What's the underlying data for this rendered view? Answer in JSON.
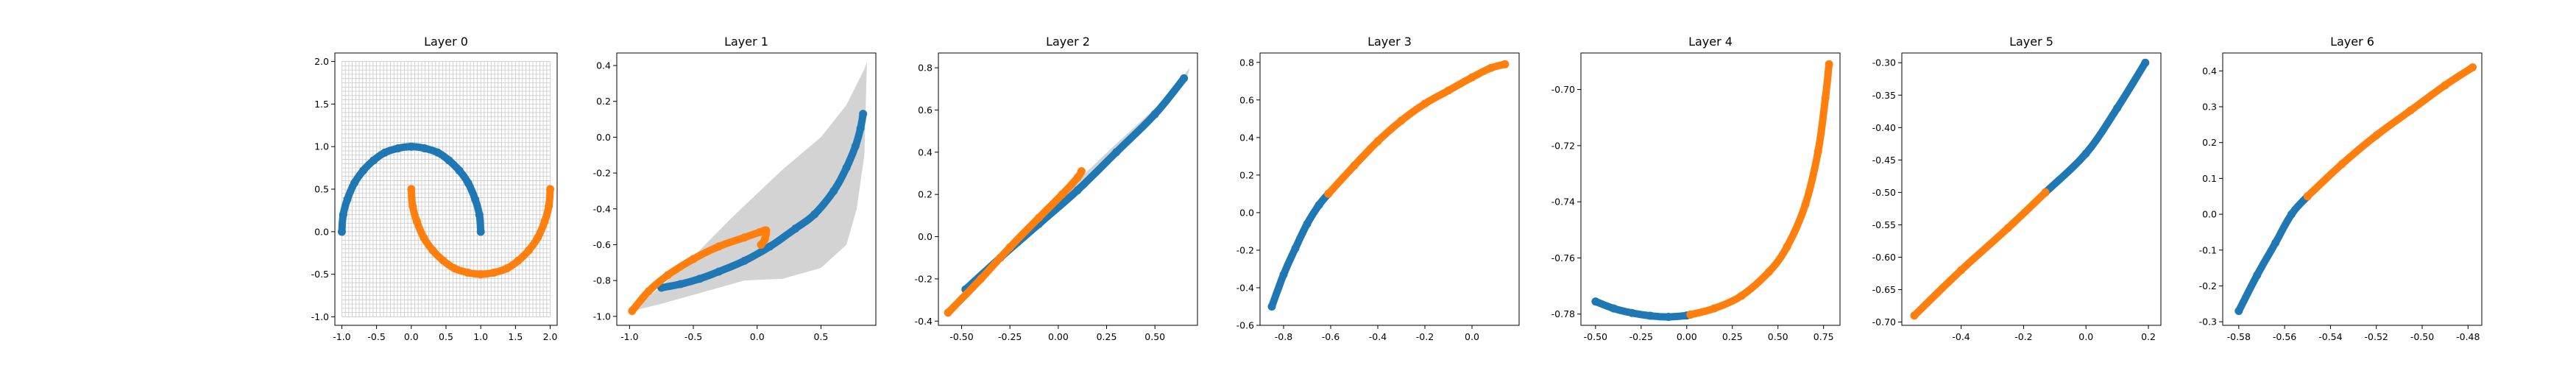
{
  "figure": {
    "colors": {
      "class_a": "#1f77b4",
      "class_b": "#ff7f0e",
      "band": "#d3d3d3",
      "grid": "#c8c8c8"
    }
  },
  "chart_data": [
    {
      "type": "scatter",
      "title": "Layer 0",
      "xlim": [
        -1.1,
        2.1
      ],
      "ylim": [
        -1.1,
        2.1
      ],
      "xticks": [
        "-1.0",
        "-0.5",
        "0.0",
        "0.5",
        "1.0",
        "1.5",
        "2.0"
      ],
      "yticks": [
        "-1.0",
        "-0.5",
        "0.0",
        "0.5",
        "1.0",
        "1.5",
        "2.0"
      ],
      "grid": {
        "x_range": [
          -1.0,
          2.0
        ],
        "y_range": [
          -1.0,
          2.0
        ],
        "lines": 60
      },
      "series": [
        {
          "color": "class_a",
          "points": [
            [
              -1.0,
              0.0
            ],
            [
              -0.98,
              0.2
            ],
            [
              -0.92,
              0.38
            ],
            [
              -0.82,
              0.57
            ],
            [
              -0.69,
              0.72
            ],
            [
              -0.54,
              0.84
            ],
            [
              -0.38,
              0.93
            ],
            [
              -0.19,
              0.98
            ],
            [
              0.0,
              1.0
            ],
            [
              0.19,
              0.98
            ],
            [
              0.38,
              0.93
            ],
            [
              0.54,
              0.84
            ],
            [
              0.69,
              0.72
            ],
            [
              0.82,
              0.57
            ],
            [
              0.92,
              0.38
            ],
            [
              0.98,
              0.2
            ],
            [
              1.0,
              0.0
            ]
          ]
        },
        {
          "color": "class_b",
          "points": [
            [
              0.0,
              0.5
            ],
            [
              0.02,
              0.3
            ],
            [
              0.08,
              0.12
            ],
            [
              0.18,
              -0.07
            ],
            [
              0.31,
              -0.22
            ],
            [
              0.46,
              -0.34
            ],
            [
              0.62,
              -0.43
            ],
            [
              0.81,
              -0.48
            ],
            [
              1.0,
              -0.5
            ],
            [
              1.19,
              -0.48
            ],
            [
              1.38,
              -0.43
            ],
            [
              1.54,
              -0.34
            ],
            [
              1.69,
              -0.22
            ],
            [
              1.82,
              -0.07
            ],
            [
              1.92,
              0.12
            ],
            [
              1.98,
              0.3
            ],
            [
              2.0,
              0.5
            ]
          ]
        }
      ]
    },
    {
      "type": "scatter",
      "title": "Layer 1",
      "xlim": [
        -1.1,
        0.93
      ],
      "ylim": [
        -1.05,
        0.47
      ],
      "xticks": [
        "-1.0",
        "-0.5",
        "0.0",
        "0.5"
      ],
      "yticks": [
        "-1.0",
        "-0.8",
        "-0.6",
        "-0.4",
        "-0.2",
        "0.0",
        "0.2",
        "0.4"
      ],
      "band": [
        [
          -0.98,
          -0.97
        ],
        [
          -0.6,
          -0.74
        ],
        [
          -0.2,
          -0.45
        ],
        [
          0.2,
          -0.18
        ],
        [
          0.5,
          0.0
        ],
        [
          0.7,
          0.18
        ],
        [
          0.84,
          0.38
        ],
        [
          0.86,
          0.42
        ],
        [
          0.84,
          -0.1
        ],
        [
          0.78,
          -0.4
        ],
        [
          0.7,
          -0.6
        ],
        [
          0.5,
          -0.73
        ],
        [
          0.2,
          -0.79
        ],
        [
          -0.1,
          -0.8
        ],
        [
          -0.4,
          -0.86
        ],
        [
          -0.75,
          -0.93
        ],
        [
          -0.98,
          -0.97
        ]
      ],
      "series": [
        {
          "color": "class_a",
          "points": [
            [
              -0.75,
              -0.84
            ],
            [
              -0.6,
              -0.82
            ],
            [
              -0.45,
              -0.79
            ],
            [
              -0.3,
              -0.75
            ],
            [
              -0.1,
              -0.69
            ],
            [
              0.1,
              -0.61
            ],
            [
              0.3,
              -0.51
            ],
            [
              0.45,
              -0.43
            ],
            [
              0.6,
              -0.3
            ],
            [
              0.7,
              -0.17
            ],
            [
              0.77,
              -0.05
            ],
            [
              0.81,
              0.05
            ],
            [
              0.83,
              0.13
            ]
          ]
        },
        {
          "color": "class_b",
          "points": [
            [
              -0.98,
              -0.97
            ],
            [
              -0.85,
              -0.86
            ],
            [
              -0.7,
              -0.77
            ],
            [
              -0.5,
              -0.68
            ],
            [
              -0.3,
              -0.61
            ],
            [
              -0.1,
              -0.56
            ],
            [
              0.02,
              -0.53
            ],
            [
              0.07,
              -0.52
            ],
            [
              0.06,
              -0.57
            ],
            [
              0.03,
              -0.6
            ]
          ]
        }
      ]
    },
    {
      "type": "scatter",
      "title": "Layer 2",
      "xlim": [
        -0.62,
        0.72
      ],
      "ylim": [
        -0.42,
        0.87
      ],
      "xticks": [
        "-0.50",
        "-0.25",
        "0.00",
        "0.25",
        "0.50"
      ],
      "yticks": [
        "-0.4",
        "-0.2",
        "0.0",
        "0.2",
        "0.4",
        "0.6",
        "0.8"
      ],
      "band": [
        [
          -0.57,
          -0.36
        ],
        [
          -0.3,
          -0.09
        ],
        [
          0.0,
          0.18
        ],
        [
          0.3,
          0.44
        ],
        [
          0.55,
          0.65
        ],
        [
          0.68,
          0.8
        ],
        [
          0.66,
          0.73
        ],
        [
          0.5,
          0.56
        ],
        [
          0.3,
          0.39
        ],
        [
          0.1,
          0.22
        ],
        [
          -0.2,
          -0.02
        ],
        [
          -0.45,
          -0.26
        ],
        [
          -0.57,
          -0.36
        ]
      ],
      "series": [
        {
          "color": "class_a",
          "points": [
            [
              -0.48,
              -0.25
            ],
            [
              -0.3,
              -0.1
            ],
            [
              -0.1,
              0.06
            ],
            [
              0.1,
              0.22
            ],
            [
              0.3,
              0.4
            ],
            [
              0.5,
              0.58
            ],
            [
              0.65,
              0.75
            ]
          ]
        },
        {
          "color": "class_b",
          "points": [
            [
              -0.57,
              -0.36
            ],
            [
              -0.4,
              -0.2
            ],
            [
              -0.25,
              -0.05
            ],
            [
              -0.1,
              0.09
            ],
            [
              0.02,
              0.2
            ],
            [
              0.1,
              0.28
            ],
            [
              0.12,
              0.31
            ]
          ]
        }
      ]
    },
    {
      "type": "scatter",
      "title": "Layer 3",
      "xlim": [
        -0.9,
        0.2
      ],
      "ylim": [
        -0.6,
        0.85
      ],
      "xticks": [
        "-0.8",
        "-0.6",
        "-0.4",
        "-0.2",
        "0.0"
      ],
      "yticks": [
        "-0.6",
        "-0.4",
        "-0.2",
        "0.0",
        "0.2",
        "0.4",
        "0.6",
        "0.8"
      ],
      "series": [
        {
          "color": "class_a",
          "points": [
            [
              -0.85,
              -0.5
            ],
            [
              -0.8,
              -0.33
            ],
            [
              -0.75,
              -0.19
            ],
            [
              -0.7,
              -0.06
            ],
            [
              -0.65,
              0.04
            ],
            [
              -0.61,
              0.1
            ]
          ]
        },
        {
          "color": "class_b",
          "points": [
            [
              -0.61,
              0.1
            ],
            [
              -0.5,
              0.25
            ],
            [
              -0.4,
              0.38
            ],
            [
              -0.3,
              0.49
            ],
            [
              -0.2,
              0.58
            ],
            [
              -0.1,
              0.65
            ],
            [
              0.0,
              0.72
            ],
            [
              0.08,
              0.77
            ],
            [
              0.14,
              0.79
            ]
          ]
        }
      ]
    },
    {
      "type": "scatter",
      "title": "Layer 4",
      "xlim": [
        -0.58,
        0.84
      ],
      "ylim": [
        -0.784,
        -0.687
      ],
      "xticks": [
        "-0.50",
        "-0.25",
        "0.00",
        "0.25",
        "0.50",
        "0.75"
      ],
      "yticks": [
        "-0.78",
        "-0.76",
        "-0.74",
        "-0.72",
        "-0.70"
      ],
      "series": [
        {
          "color": "class_a",
          "points": [
            [
              -0.5,
              -0.7755
            ],
            [
              -0.4,
              -0.778
            ],
            [
              -0.3,
              -0.7796
            ],
            [
              -0.2,
              -0.7806
            ],
            [
              -0.1,
              -0.781
            ],
            [
              0.0,
              -0.7805
            ],
            [
              0.02,
              -0.7802
            ]
          ]
        },
        {
          "color": "class_b",
          "points": [
            [
              0.02,
              -0.7802
            ],
            [
              0.15,
              -0.778
            ],
            [
              0.3,
              -0.7735
            ],
            [
              0.45,
              -0.765
            ],
            [
              0.55,
              -0.756
            ],
            [
              0.65,
              -0.741
            ],
            [
              0.72,
              -0.722
            ],
            [
              0.76,
              -0.703
            ],
            [
              0.78,
              -0.691
            ]
          ]
        }
      ]
    },
    {
      "type": "scatter",
      "title": "Layer 5",
      "xlim": [
        -0.59,
        0.24
      ],
      "ylim": [
        -0.705,
        -0.285
      ],
      "xticks": [
        "-0.4",
        "-0.2",
        "0.0",
        "0.2"
      ],
      "yticks": [
        "-0.70",
        "-0.65",
        "-0.60",
        "-0.55",
        "-0.50",
        "-0.45",
        "-0.40",
        "-0.35",
        "-0.30"
      ],
      "series": [
        {
          "color": "class_a",
          "points": [
            [
              -0.13,
              -0.5
            ],
            [
              0.0,
              -0.44
            ],
            [
              0.1,
              -0.37
            ],
            [
              0.19,
              -0.3
            ]
          ]
        },
        {
          "color": "class_b",
          "points": [
            [
              -0.55,
              -0.69
            ],
            [
              -0.4,
              -0.62
            ],
            [
              -0.25,
              -0.555
            ],
            [
              -0.13,
              -0.5
            ]
          ]
        }
      ]
    },
    {
      "type": "scatter",
      "title": "Layer 6",
      "xlim": [
        -0.587,
        -0.474
      ],
      "ylim": [
        -0.31,
        0.45
      ],
      "xticks": [
        "-0.58",
        "-0.56",
        "-0.54",
        "-0.52",
        "-0.50",
        "-0.48"
      ],
      "yticks": [
        "-0.3",
        "-0.2",
        "-0.1",
        "0.0",
        "0.1",
        "0.2",
        "0.3",
        "0.4"
      ],
      "series": [
        {
          "color": "class_a",
          "points": [
            [
              -0.58,
              -0.27
            ],
            [
              -0.572,
              -0.17
            ],
            [
              -0.564,
              -0.08
            ],
            [
              -0.557,
              0.0
            ],
            [
              -0.55,
              0.05
            ]
          ]
        },
        {
          "color": "class_b",
          "points": [
            [
              -0.55,
              0.05
            ],
            [
              -0.535,
              0.14
            ],
            [
              -0.52,
              0.22
            ],
            [
              -0.505,
              0.29
            ],
            [
              -0.49,
              0.36
            ],
            [
              -0.478,
              0.41
            ]
          ]
        }
      ]
    }
  ]
}
